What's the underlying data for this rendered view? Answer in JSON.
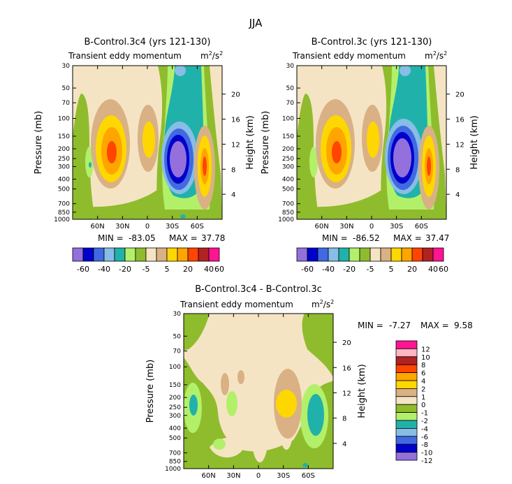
{
  "main_title": "JJA",
  "colors": {
    "c_n12": "#9370db",
    "c_n10": "#0000cd",
    "c_n8": "#4169e1",
    "c_n6": "#87bde6",
    "c_n4": "#20b2aa",
    "c_n2": "#b2f06a",
    "c_0": "#8fbc2c",
    "c_1": "#f5e4c3",
    "c_2": "#d9b184",
    "c_4": "#ffd700",
    "c_6": "#ffa500",
    "c_8": "#ff4500",
    "c_10": "#b22222",
    "c_12": "#ffb6c1",
    "c_top": "#ff1493",
    "axis": "#000000"
  },
  "chart_data": [
    {
      "id": "panel1",
      "type": "contour",
      "title": "B-Control.3c4 (yrs 121-130)",
      "subtitle": "Transient eddy momentum",
      "units_base": "m",
      "units_sup": "2",
      "units_den": "/s",
      "units_den_sup": "2",
      "ylabel": "Pressure (mb)",
      "y2label": "Height (km)",
      "x_ticks": [
        "60N",
        "30N",
        "0",
        "30S",
        "60S"
      ],
      "x_tick_values": [
        60,
        30,
        0,
        -30,
        -60
      ],
      "xlim": [
        90,
        -90
      ],
      "y_ticks": [
        "30",
        "50",
        "70",
        "100",
        "150",
        "200",
        "250",
        "300",
        "400",
        "500",
        "700",
        "850",
        "1000"
      ],
      "y_tick_values": [
        30,
        50,
        70,
        100,
        150,
        200,
        250,
        300,
        400,
        500,
        700,
        850,
        1000
      ],
      "ylim": [
        1000,
        30
      ],
      "height_ticks": [
        "20",
        "16",
        "12",
        "8",
        "4"
      ],
      "height_tick_values": [
        20,
        16,
        12,
        8,
        4
      ],
      "min_label": "MIN =",
      "min_value": "-83.05",
      "max_label": "MAX =",
      "max_value": "37.78",
      "levels": [
        -60,
        -40,
        -20,
        -5,
        5,
        20,
        40,
        60
      ],
      "colorbar_labels": [
        "-60",
        "-40",
        "-20",
        "-5",
        "5",
        "20",
        "40",
        "60"
      ]
    },
    {
      "id": "panel2",
      "type": "contour",
      "title": "B-Control.3c (yrs 121-130)",
      "subtitle": "Transient eddy momentum",
      "units_base": "m",
      "units_sup": "2",
      "units_den": "/s",
      "units_den_sup": "2",
      "ylabel": "Pressure (mb)",
      "y2label": "Height (km)",
      "x_ticks": [
        "60N",
        "30N",
        "0",
        "30S",
        "60S"
      ],
      "x_tick_values": [
        60,
        30,
        0,
        -30,
        -60
      ],
      "xlim": [
        90,
        -90
      ],
      "y_ticks": [
        "30",
        "50",
        "70",
        "100",
        "150",
        "200",
        "250",
        "300",
        "400",
        "500",
        "700",
        "850",
        "1000"
      ],
      "y_tick_values": [
        30,
        50,
        70,
        100,
        150,
        200,
        250,
        300,
        400,
        500,
        700,
        850,
        1000
      ],
      "ylim": [
        1000,
        30
      ],
      "height_ticks": [
        "20",
        "16",
        "12",
        "8",
        "4"
      ],
      "height_tick_values": [
        20,
        16,
        12,
        8,
        4
      ],
      "min_label": "MIN =",
      "min_value": "-86.52",
      "max_label": "MAX =",
      "max_value": "37.47",
      "levels": [
        -60,
        -40,
        -20,
        -5,
        5,
        20,
        40,
        60
      ],
      "colorbar_labels": [
        "-60",
        "-40",
        "-20",
        "-5",
        "5",
        "20",
        "40",
        "60"
      ]
    },
    {
      "id": "panel3",
      "type": "contour",
      "title": "B-Control.3c4 - B-Control.3c",
      "subtitle": "Transient eddy momentum",
      "units_base": "m",
      "units_sup": "2",
      "units_den": "/s",
      "units_den_sup": "2",
      "ylabel": "Pressure (mb)",
      "y2label": "Height (km)",
      "x_ticks": [
        "60N",
        "30N",
        "0",
        "30S",
        "60S"
      ],
      "x_tick_values": [
        60,
        30,
        0,
        -30,
        -60
      ],
      "xlim": [
        90,
        -90
      ],
      "y_ticks": [
        "30",
        "50",
        "70",
        "100",
        "150",
        "200",
        "250",
        "300",
        "400",
        "500",
        "700",
        "850",
        "1000"
      ],
      "y_tick_values": [
        30,
        50,
        70,
        100,
        150,
        200,
        250,
        300,
        400,
        500,
        700,
        850,
        1000
      ],
      "ylim": [
        1000,
        30
      ],
      "height_ticks": [
        "20",
        "16",
        "12",
        "8",
        "4"
      ],
      "height_tick_values": [
        20,
        16,
        12,
        8,
        4
      ],
      "min_label": "MIN =",
      "min_value": "-7.27",
      "max_label": "MAX =",
      "max_value": "9.58",
      "levels": [
        -12,
        -10,
        -8,
        -6,
        -4,
        -2,
        -1,
        0,
        1,
        2,
        4,
        6,
        8,
        10,
        12
      ],
      "colorbar_labels": [
        "12",
        "10",
        "8",
        "6",
        "4",
        "2",
        "1",
        "0",
        "-1",
        "-2",
        "-4",
        "-6",
        "-8",
        "-10",
        "-12"
      ]
    }
  ]
}
